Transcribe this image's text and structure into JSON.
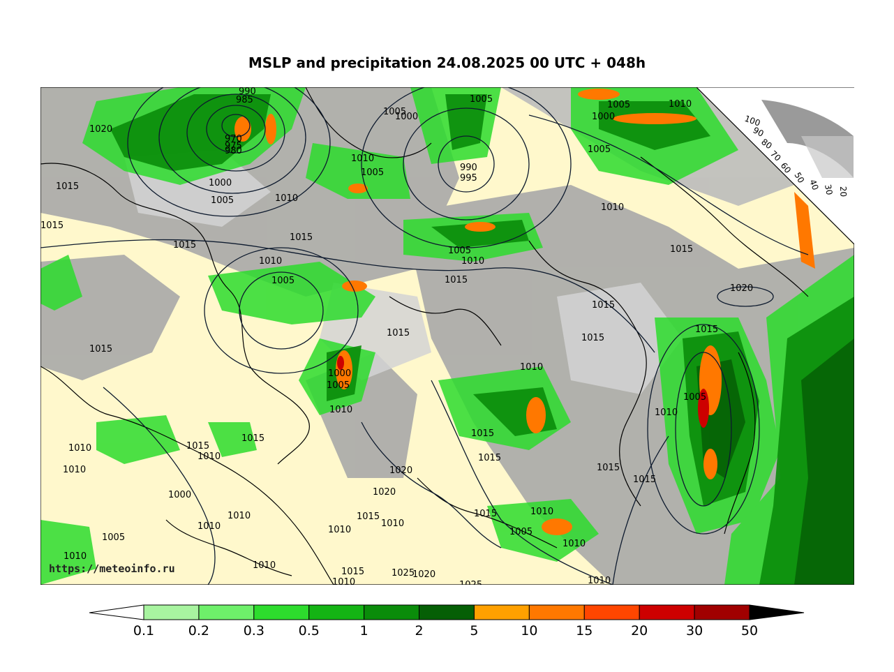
{
  "title": "MSLP and precipitation 24.08.2025 00 UTC + 048h",
  "watermark": "https://meteoinfo.ru",
  "colors": {
    "land": "#fff8cc",
    "cloud_gray": "#a8a8a8",
    "isobar": "#0d1a2e",
    "coast": "#000000"
  },
  "precip_legend": {
    "thresholds": [
      "0.1",
      "0.2",
      "0.3",
      "0.5",
      "1",
      "2",
      "5",
      "10",
      "15",
      "20",
      "30",
      "50"
    ],
    "colors": [
      "#a8f4a0",
      "#6ef06a",
      "#2ddc2d",
      "#14b414",
      "#0a8c0a",
      "#055f05",
      "#ffa000",
      "#ff7800",
      "#ff4600",
      "#cd0000",
      "#a00000"
    ]
  },
  "cloud_legend": {
    "labels": [
      "100",
      "90",
      "80",
      "70",
      "60",
      "50",
      "40",
      "30",
      "20"
    ]
  },
  "isobar_labels": [
    "990",
    "985",
    "970",
    "975",
    "980",
    "1020",
    "1000",
    "1005",
    "1010",
    "1005",
    "1010",
    "990",
    "995",
    "1005",
    "1000",
    "1005",
    "1010",
    "1005",
    "1000",
    "1005",
    "1010",
    "1015",
    "1015",
    "1015",
    "1015",
    "1010",
    "1005",
    "1015",
    "1005",
    "1010",
    "1015",
    "1015",
    "1020",
    "1015",
    "1015",
    "1015",
    "1000",
    "1005",
    "1010",
    "1015",
    "1010",
    "1005",
    "1010",
    "1015",
    "1010",
    "1015",
    "1010",
    "1010",
    "1015",
    "1015",
    "1015",
    "1020",
    "1015",
    "1020",
    "1015",
    "1010",
    "1015",
    "1010",
    "1005",
    "1010",
    "1010",
    "1000",
    "1010",
    "1005",
    "1010",
    "1010",
    "1010",
    "1015",
    "1025",
    "1020",
    "1025",
    "1010",
    "1010"
  ]
}
